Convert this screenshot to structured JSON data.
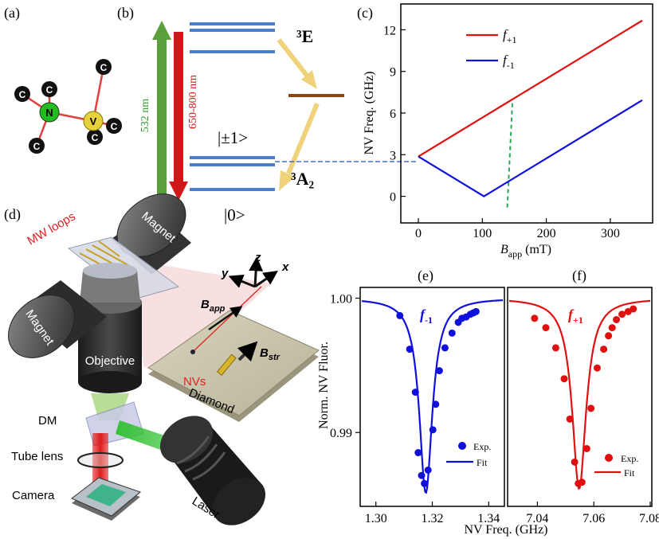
{
  "panels": {
    "a": "(a)",
    "b": "(b)",
    "c": "(c)",
    "d": "(d)",
    "e": "(e)",
    "f": "(f)"
  },
  "lattice": {
    "atom_c": "C",
    "atom_n": "N",
    "atom_v": "V",
    "colors": {
      "carbon": "#111111",
      "nitrogen": "#22bb22",
      "vacancy": "#e6d23a",
      "bond": "#e04040"
    }
  },
  "levels": {
    "excited_state": "³E",
    "ground_state": "³A₂",
    "pm1": "|±1>",
    "zero": "|0>",
    "pump": "532 nm",
    "emission": "650-800 nm",
    "colors": {
      "level": "#4a7fd0",
      "pump": "#5aa03a",
      "emission": "#d01818",
      "singlet": "#8b4513",
      "decay": "#f0d27a"
    }
  },
  "setup": {
    "mw_loops": "MW loops",
    "magnet_top": "Magnet",
    "magnet_left": "Magnet",
    "objective": "Objective",
    "nvs": "NVs",
    "diamond": "Diamond",
    "dm": "DM",
    "tube_lens": "Tube lens",
    "camera": "Camera",
    "laser": "Laser",
    "b_app": "B",
    "b_app_sub": "app",
    "b_str": "B",
    "b_str_sub": "str",
    "axis_x": "x",
    "axis_y": "y",
    "axis_z": "z"
  },
  "chart_data": [
    {
      "id": "c",
      "type": "line",
      "xlabel_main": "B",
      "xlabel_sub": "app",
      "xlabel_unit": " (mT)",
      "ylabel": "NV Freq. (GHz)",
      "xlim": [
        0,
        350
      ],
      "ylim": [
        -1,
        13
      ],
      "xticks": [
        "0",
        "100",
        "200",
        "300"
      ],
      "yticks": [
        "0",
        "3",
        "6",
        "9",
        "12"
      ],
      "legend_position": "top-left",
      "series": [
        {
          "name": "f+1",
          "label_main": "f",
          "label_sub": "+1",
          "color": "#e01010",
          "x": [
            0,
            350
          ],
          "y": [
            2.87,
            12.67
          ]
        },
        {
          "name": "f-1",
          "label_main": "f",
          "label_sub": "-1",
          "color": "#1010e0",
          "x": [
            0,
            102.5,
            350
          ],
          "y": [
            2.87,
            0,
            6.93
          ]
        }
      ],
      "annotation": {
        "type": "dashed-line",
        "color": "#22aa55",
        "x": [
          139,
          147
        ],
        "y": [
          -0.8,
          6.7
        ]
      }
    },
    {
      "id": "e",
      "type": "scatter",
      "ylabel": "Norm. NV Fluor.",
      "xlim": [
        1.295,
        1.345
      ],
      "ylim": [
        0.9845,
        1.0008
      ],
      "xticks": [
        "1.30",
        "1.32",
        "1.34"
      ],
      "yticks": [
        "0.99",
        "1.00"
      ],
      "label_main": "f",
      "label_sub": "-1",
      "color": "#1010dd",
      "legend": [
        "Exp.",
        "Fit"
      ],
      "fit": {
        "center": 1.3177,
        "depth": 0.0145,
        "width": 0.0028
      },
      "points": {
        "x": [
          1.3085,
          1.312,
          1.314,
          1.315,
          1.3162,
          1.3172,
          1.3185,
          1.3202,
          1.3212,
          1.3225,
          1.3245,
          1.327,
          1.3292,
          1.3305,
          1.332,
          1.3335,
          1.3345,
          1.3355
        ],
        "y": [
          0.9987,
          0.9962,
          0.993,
          0.9885,
          0.9868,
          0.9862,
          0.9872,
          0.9902,
          0.9921,
          0.9946,
          0.9963,
          0.9974,
          0.9982,
          0.9985,
          0.9986,
          0.9988,
          0.9989,
          0.999
        ]
      }
    },
    {
      "id": "f",
      "type": "scatter",
      "xlabel": "NV Freq. (GHz)",
      "xlim": [
        7.03,
        7.08
      ],
      "ylim": [
        0.9845,
        1.0008
      ],
      "xticks": [
        "7.04",
        "7.06",
        "7.08"
      ],
      "label_main": "f",
      "label_sub": "+1",
      "color": "#e01010",
      "legend": [
        "Exp.",
        "Fit"
      ],
      "fit": {
        "center": 7.0548,
        "depth": 0.0142,
        "width": 0.003
      },
      "points": {
        "x": [
          7.039,
          7.043,
          7.0465,
          7.0495,
          7.0515,
          7.0532,
          7.0545,
          7.0558,
          7.0575,
          7.059,
          7.0612,
          7.0635,
          7.0652,
          7.0665,
          7.068,
          7.07,
          7.0722,
          7.074
        ],
        "y": [
          0.9985,
          0.9978,
          0.9963,
          0.994,
          0.991,
          0.9878,
          0.9862,
          0.9863,
          0.9888,
          0.9918,
          0.9948,
          0.9962,
          0.9972,
          0.9978,
          0.9984,
          0.9988,
          0.999,
          0.9992
        ]
      }
    }
  ]
}
